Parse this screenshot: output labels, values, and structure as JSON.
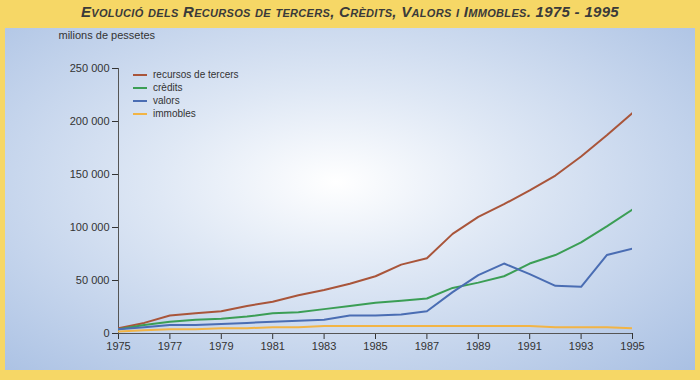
{
  "chart_data": {
    "type": "line",
    "title": "Evolució dels Recursos de tercers, Crèdits, Valors i Immobles. 1975 - 1995",
    "y_label": "milions de pessetes",
    "x": [
      1975,
      1976,
      1977,
      1978,
      1979,
      1980,
      1981,
      1982,
      1983,
      1984,
      1985,
      1986,
      1987,
      1988,
      1989,
      1990,
      1991,
      1992,
      1993,
      1994,
      1995
    ],
    "series": [
      {
        "name": "recursos de tercers",
        "color": "#a9553a",
        "values": [
          5000,
          10000,
          17000,
          19000,
          21000,
          26000,
          30000,
          36000,
          41000,
          47000,
          54000,
          65000,
          71000,
          94000,
          110000,
          122000,
          135000,
          149000,
          167000,
          187000,
          208000
        ]
      },
      {
        "name": "crèdits",
        "color": "#3b9e55",
        "values": [
          4000,
          8000,
          11000,
          13000,
          14000,
          16000,
          19000,
          20000,
          23000,
          26000,
          29000,
          31000,
          33000,
          43000,
          48000,
          54000,
          66000,
          74000,
          86000,
          101000,
          117000
        ]
      },
      {
        "name": "valors",
        "color": "#4a6db3",
        "values": [
          4000,
          6000,
          8000,
          8000,
          9000,
          10000,
          11000,
          12000,
          13000,
          17000,
          17000,
          18000,
          21000,
          39000,
          55000,
          66000,
          56000,
          45000,
          44000,
          74000,
          80000
        ]
      },
      {
        "name": "immobles",
        "color": "#f2b445",
        "values": [
          2000,
          3000,
          4000,
          4000,
          5000,
          5000,
          6000,
          6000,
          7000,
          7000,
          7000,
          7000,
          7000,
          7000,
          7000,
          7000,
          7000,
          6000,
          6000,
          6000,
          5000
        ]
      }
    ],
    "xlim": [
      1975,
      1995
    ],
    "xticks": [
      1975,
      1977,
      1979,
      1981,
      1983,
      1985,
      1987,
      1989,
      1991,
      1993,
      1995
    ],
    "ylim": [
      0,
      250000
    ],
    "yticks": [
      0,
      {
        "value": 50000,
        "label": "50 000"
      },
      {
        "value": 100000,
        "label": "100 000"
      },
      {
        "value": 150000,
        "label": "150 000"
      },
      {
        "value": 200000,
        "label": "200 000"
      },
      {
        "value": 250000,
        "label": "250 000"
      }
    ],
    "grid": false,
    "legend": "top-left"
  }
}
